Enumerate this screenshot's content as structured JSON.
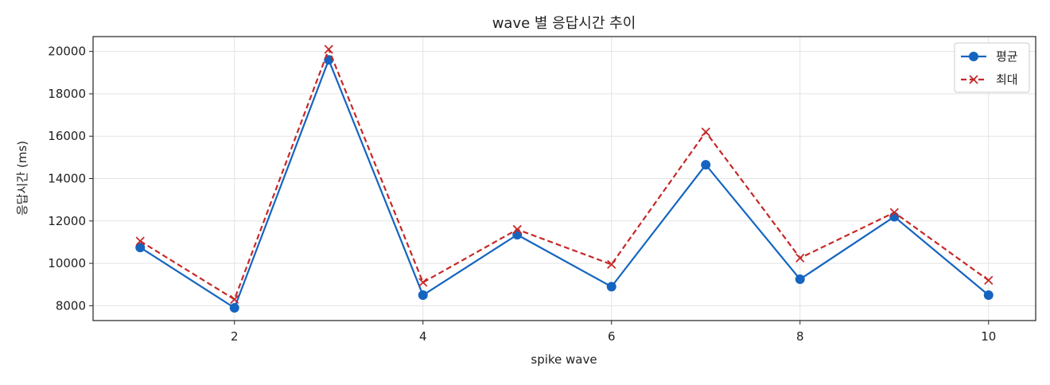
{
  "chart_data": {
    "type": "line",
    "title": "wave 별 응답시간 추이",
    "xlabel": "spike wave",
    "ylabel": "응답시간 (ms)",
    "x": [
      1,
      2,
      3,
      4,
      5,
      6,
      7,
      8,
      9,
      10
    ],
    "xticks": [
      2,
      4,
      6,
      8,
      10
    ],
    "yticks": [
      8000,
      10000,
      12000,
      14000,
      16000,
      18000,
      20000
    ],
    "xlim": [
      0.5,
      10.5
    ],
    "ylim": [
      7300,
      20700
    ],
    "grid": true,
    "legend_position": "top-right",
    "series": [
      {
        "name": "평균",
        "values": [
          10750,
          7900,
          19600,
          8500,
          11350,
          8900,
          14650,
          9250,
          12200,
          8500
        ],
        "color": "#1565c0",
        "marker": "circle",
        "line_style": "solid"
      },
      {
        "name": "최대",
        "values": [
          11050,
          8300,
          20100,
          9100,
          11600,
          9950,
          16200,
          10250,
          12400,
          9200
        ],
        "color": "#c62828",
        "marker": "x",
        "line_style": "dashed"
      }
    ]
  }
}
